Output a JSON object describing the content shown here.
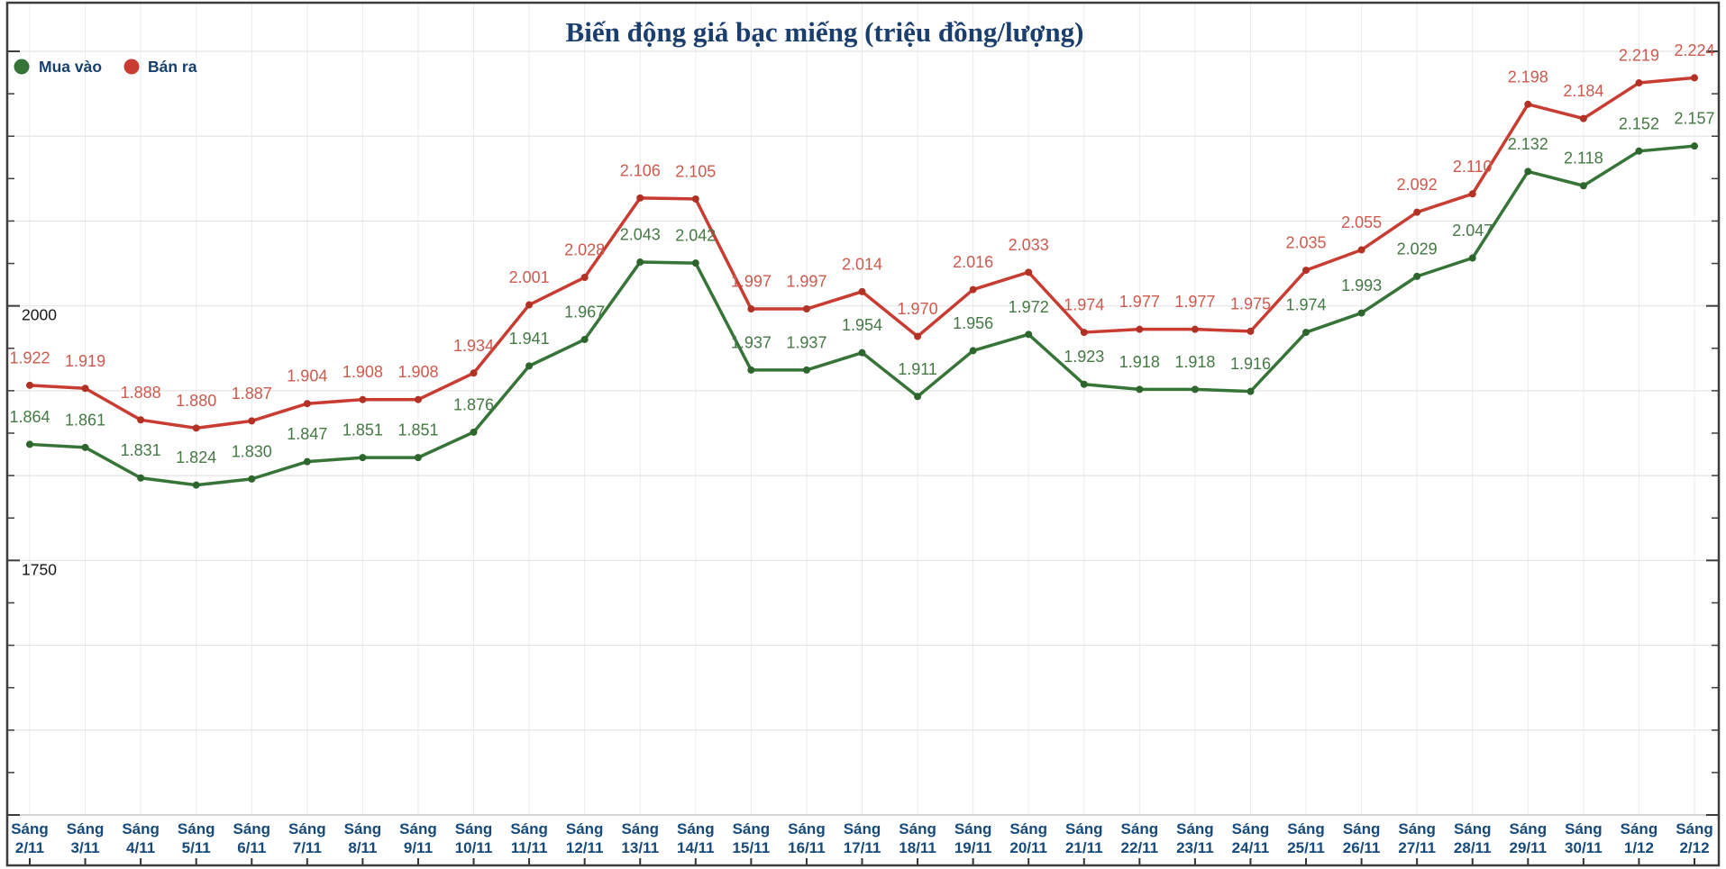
{
  "title": "Biến động giá bạc miếng (triệu đồng/lượng)",
  "legend": {
    "items": [
      {
        "label": "Mua vào",
        "color": "#377437"
      },
      {
        "label": "Bán ra",
        "color": "#c93c32"
      }
    ]
  },
  "chart_data": {
    "type": "line",
    "x_prefix": "Sáng",
    "categories": [
      "2/11",
      "3/11",
      "4/11",
      "5/11",
      "6/11",
      "7/11",
      "8/11",
      "9/11",
      "10/11",
      "11/11",
      "12/11",
      "13/11",
      "14/11",
      "15/11",
      "16/11",
      "17/11",
      "18/11",
      "19/11",
      "20/11",
      "21/11",
      "22/11",
      "23/11",
      "24/11",
      "25/11",
      "26/11",
      "27/11",
      "28/11",
      "29/11",
      "30/11",
      "1/12",
      "2/12"
    ],
    "series": [
      {
        "name": "Mua vào",
        "color": "#377437",
        "dot_color": "#2d662d",
        "label_color": "#447944",
        "values": [
          1864,
          1861,
          1831,
          1824,
          1830,
          1847,
          1851,
          1851,
          1876,
          1941,
          1967,
          2043,
          2042,
          1937,
          1937,
          1954,
          1911,
          1956,
          1972,
          1923,
          1918,
          1918,
          1916,
          1974,
          1993,
          2029,
          2047,
          2132,
          2118,
          2152,
          2157
        ],
        "labels": [
          "1.864",
          "1.861",
          "1.831",
          "1.824",
          "1.830",
          "1.847",
          "1.851",
          "1.851",
          "1.876",
          "1.941",
          "1.967",
          "2.043",
          "2.042",
          "1.937",
          "1.937",
          "1.954",
          "1.911",
          "1.956",
          "1.972",
          "1.923",
          "1.918",
          "1.918",
          "1.916",
          "1.974",
          "1.993",
          "2.029",
          "2.047",
          "2.132",
          "2.118",
          "2.152",
          "2.157"
        ]
      },
      {
        "name": "Bán ra",
        "color": "#c93c32",
        "dot_color": "#b23125",
        "label_color": "#cd5a4e",
        "values": [
          1922,
          1919,
          1888,
          1880,
          1887,
          1904,
          1908,
          1908,
          1934,
          2001,
          2028,
          2106,
          2105,
          1997,
          1997,
          2014,
          1970,
          2016,
          2033,
          1974,
          1977,
          1977,
          1975,
          2035,
          2055,
          2092,
          2110,
          2198,
          2184,
          2219,
          2224
        ],
        "labels": [
          "1.922",
          "1.919",
          "1.888",
          "1.880",
          "1.887",
          "1.904",
          "1.908",
          "1.908",
          "1.934",
          "2.001",
          "2.028",
          "2.106",
          "2.105",
          "1.997",
          "1.997",
          "2.014",
          "1.970",
          "2.016",
          "2.033",
          "1.974",
          "1.977",
          "1.977",
          "1.975",
          "2.035",
          "2.055",
          "2.092",
          "2.110",
          "2.198",
          "2.184",
          "2.219",
          "2.224"
        ]
      }
    ],
    "ylim": [
      1500,
      2250
    ],
    "yticks": [
      {
        "value": 2000,
        "label": "2000"
      },
      {
        "value": 1750,
        "label": "1750"
      }
    ],
    "grid": "on",
    "legend_position": "top-left",
    "title": "Biến động giá bạc miếng (triệu đồng/lượng)"
  }
}
